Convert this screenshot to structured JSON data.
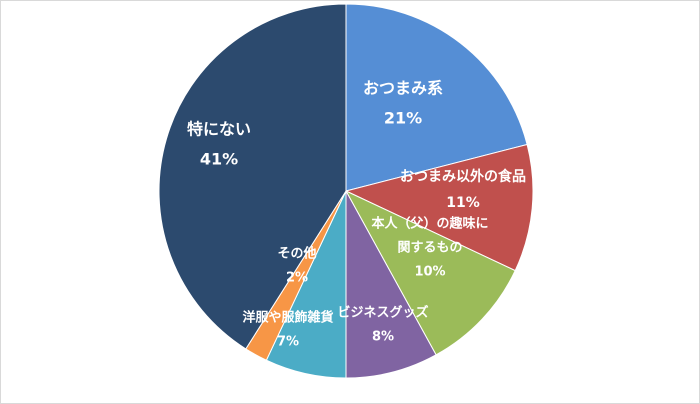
{
  "chart_data": {
    "type": "pie",
    "title": "",
    "start_angle_deg": 0,
    "direction": "clockwise",
    "legend": "none",
    "slices": [
      {
        "label_lines": [
          "おつまみ系"
        ],
        "pct_label": "21%",
        "value": 21,
        "color": "#558ed5"
      },
      {
        "label_lines": [
          "おつまみ以外の食品"
        ],
        "pct_label": "11%",
        "value": 11,
        "color": "#c0504d"
      },
      {
        "label_lines": [
          "本人（父）の趣味に",
          "関するもの"
        ],
        "pct_label": "10%",
        "value": 10,
        "color": "#9bbb59"
      },
      {
        "label_lines": [
          "ビジネスグッズ"
        ],
        "pct_label": "8%",
        "value": 8,
        "color": "#8064a2"
      },
      {
        "label_lines": [
          "洋服や服飾雑貨"
        ],
        "pct_label": "7%",
        "value": 7,
        "color": "#4bacc6"
      },
      {
        "label_lines": [
          "その他"
        ],
        "pct_label": "2%",
        "value": 2,
        "color": "#f79646"
      },
      {
        "label_lines": [
          "特にない"
        ],
        "pct_label": "41%",
        "value": 41,
        "color": "#2c4a6e"
      }
    ]
  }
}
